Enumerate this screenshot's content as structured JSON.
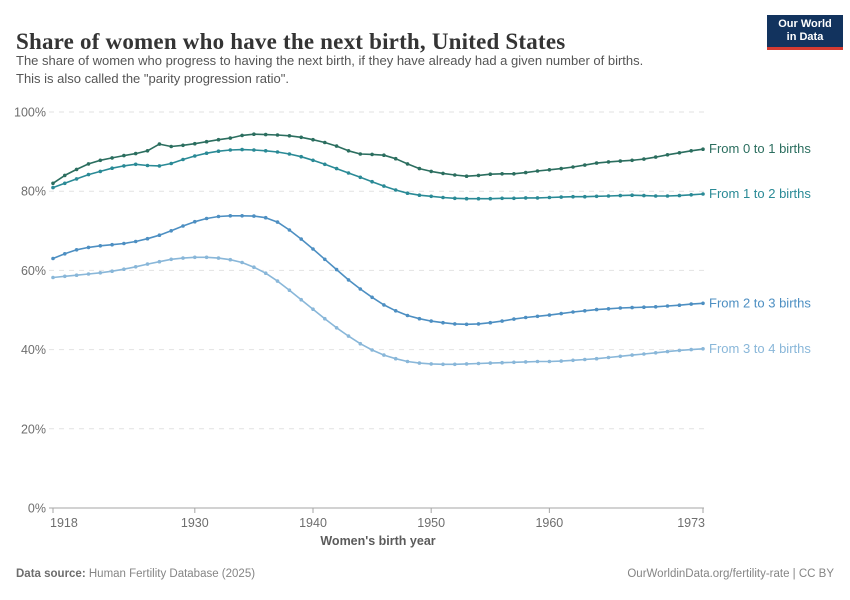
{
  "header": {
    "title": "Share of women who have the next birth, United States",
    "subtitle_line1": "The share of women who progress to having the next birth, if they have already had a given number of births.",
    "subtitle_line2": "This is also called the \"parity progression ratio\".",
    "logo": {
      "line1": "Our World",
      "line2": "in Data",
      "bg_color": "#12335e",
      "bar_color": "#d43b32"
    }
  },
  "chart_data": {
    "type": "line",
    "title": "Share of women who have the next birth, United States",
    "xlabel": "Women's birth year",
    "ylabel": "",
    "xlim": [
      1918,
      1973
    ],
    "ylim": [
      0,
      100
    ],
    "x_ticks": [
      1918,
      1930,
      1940,
      1950,
      1960,
      1973
    ],
    "y_ticks": [
      0,
      20,
      40,
      60,
      80,
      100
    ],
    "y_tick_suffix": "%",
    "grid": "horizontal-dashed",
    "legend_position": "right-of-line-end",
    "x": [
      1918,
      1919,
      1920,
      1921,
      1922,
      1923,
      1924,
      1925,
      1926,
      1927,
      1928,
      1929,
      1930,
      1931,
      1932,
      1933,
      1934,
      1935,
      1936,
      1937,
      1938,
      1939,
      1940,
      1941,
      1942,
      1943,
      1944,
      1945,
      1946,
      1947,
      1948,
      1949,
      1950,
      1951,
      1952,
      1953,
      1954,
      1955,
      1956,
      1957,
      1958,
      1959,
      1960,
      1961,
      1962,
      1963,
      1964,
      1965,
      1966,
      1967,
      1968,
      1969,
      1970,
      1971,
      1972,
      1973
    ],
    "series": [
      {
        "name": "From 0 to 1 births",
        "color": "#2b6e5f",
        "values": [
          82.0,
          84.0,
          85.5,
          86.9,
          87.8,
          88.4,
          89.0,
          89.5,
          90.2,
          91.9,
          91.3,
          91.6,
          92.0,
          92.5,
          93.0,
          93.4,
          94.1,
          94.4,
          94.3,
          94.2,
          94.0,
          93.6,
          93.0,
          92.3,
          91.4,
          90.2,
          89.4,
          89.3,
          89.1,
          88.2,
          86.9,
          85.7,
          85.0,
          84.5,
          84.1,
          83.8,
          84.0,
          84.3,
          84.4,
          84.4,
          84.7,
          85.1,
          85.4,
          85.7,
          86.1,
          86.6,
          87.1,
          87.4,
          87.6,
          87.8,
          88.1,
          88.6,
          89.2,
          89.7,
          90.2,
          90.6
        ]
      },
      {
        "name": "From 1 to 2 births",
        "color": "#2a8a96",
        "values": [
          80.9,
          82.0,
          83.1,
          84.2,
          85.0,
          85.8,
          86.4,
          86.8,
          86.5,
          86.4,
          87.0,
          88.0,
          88.9,
          89.6,
          90.1,
          90.4,
          90.5,
          90.4,
          90.2,
          89.9,
          89.4,
          88.7,
          87.8,
          86.8,
          85.7,
          84.6,
          83.5,
          82.4,
          81.3,
          80.3,
          79.5,
          79.0,
          78.7,
          78.4,
          78.2,
          78.1,
          78.1,
          78.1,
          78.2,
          78.2,
          78.3,
          78.3,
          78.4,
          78.5,
          78.6,
          78.6,
          78.7,
          78.8,
          78.9,
          79.0,
          78.9,
          78.8,
          78.8,
          78.9,
          79.1,
          79.3
        ]
      },
      {
        "name": "From 2 to 3 births",
        "color": "#4d8fc2",
        "values": [
          63.0,
          64.2,
          65.2,
          65.8,
          66.2,
          66.5,
          66.8,
          67.3,
          68.0,
          68.9,
          70.0,
          71.2,
          72.3,
          73.1,
          73.6,
          73.8,
          73.8,
          73.7,
          73.3,
          72.2,
          70.2,
          67.9,
          65.4,
          62.8,
          60.2,
          57.6,
          55.3,
          53.2,
          51.3,
          49.8,
          48.6,
          47.8,
          47.2,
          46.8,
          46.5,
          46.4,
          46.5,
          46.8,
          47.2,
          47.7,
          48.1,
          48.4,
          48.7,
          49.1,
          49.5,
          49.8,
          50.1,
          50.3,
          50.5,
          50.6,
          50.7,
          50.8,
          51.0,
          51.2,
          51.5,
          51.7
        ]
      },
      {
        "name": "From 3 to 4 births",
        "color": "#89b7d9",
        "values": [
          58.2,
          58.5,
          58.8,
          59.1,
          59.4,
          59.8,
          60.3,
          60.9,
          61.6,
          62.2,
          62.8,
          63.1,
          63.3,
          63.3,
          63.1,
          62.7,
          62.0,
          60.8,
          59.3,
          57.3,
          55.0,
          52.6,
          50.2,
          47.8,
          45.5,
          43.4,
          41.5,
          39.9,
          38.6,
          37.7,
          37.0,
          36.6,
          36.4,
          36.3,
          36.3,
          36.4,
          36.5,
          36.6,
          36.7,
          36.8,
          36.9,
          37.0,
          37.0,
          37.1,
          37.3,
          37.5,
          37.7,
          38.0,
          38.3,
          38.6,
          38.9,
          39.2,
          39.5,
          39.8,
          40.0,
          40.2
        ]
      }
    ]
  },
  "footer": {
    "source_label": "Data source:",
    "source_value": " Human Fertility Database (2025)",
    "credit": "OurWorldinData.org/fertility-rate | CC BY"
  }
}
